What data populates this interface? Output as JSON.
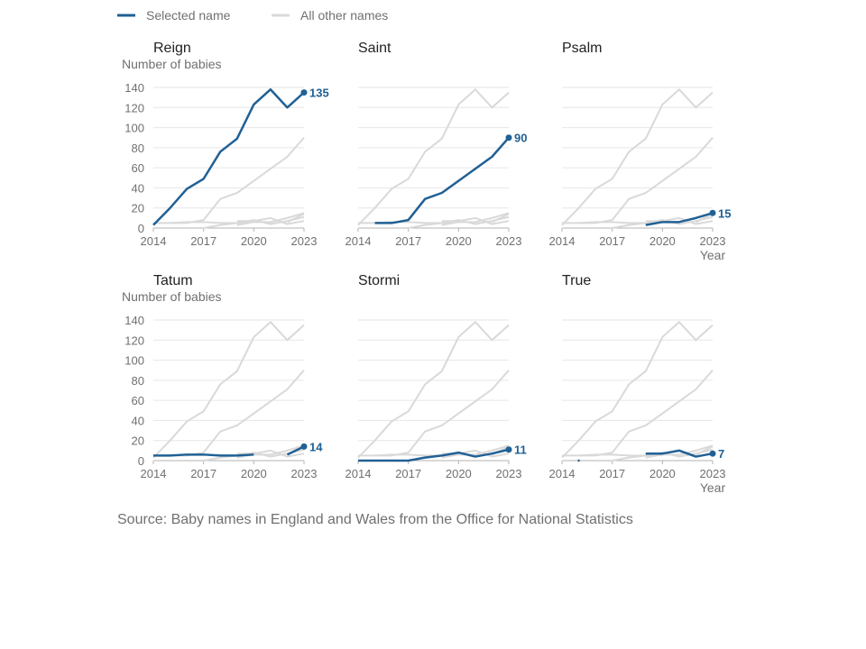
{
  "legend": {
    "selected_label": "Selected name",
    "others_label": "All other names",
    "selected_color": "#206095",
    "others_color": "#d9d9d9"
  },
  "y_axis_title": "Number of babies",
  "x_axis_title": "Year",
  "source": "Source: Baby names in England and Wales from the Office for National Statistics",
  "chart_data": {
    "type": "line",
    "x": [
      2014,
      2015,
      2016,
      2017,
      2018,
      2019,
      2020,
      2021,
      2022,
      2023
    ],
    "x_ticks": [
      2014,
      2017,
      2020,
      2023
    ],
    "y_ticks": [
      0,
      20,
      40,
      60,
      80,
      100,
      120,
      140
    ],
    "xlim": [
      2014,
      2023
    ],
    "ylim": [
      0,
      145
    ],
    "grid": true,
    "panels": [
      "Reign",
      "Saint",
      "Psalm",
      "Tatum",
      "Stormi",
      "True"
    ],
    "series": [
      {
        "name": "Reign",
        "values": [
          3,
          20,
          39,
          49,
          76,
          89,
          123,
          138,
          120,
          135
        ]
      },
      {
        "name": "Saint",
        "values": [
          null,
          5,
          5,
          8,
          29,
          35,
          47,
          59,
          71,
          90
        ]
      },
      {
        "name": "Psalm",
        "values": [
          null,
          null,
          null,
          null,
          null,
          3,
          6,
          6,
          10,
          15
        ]
      },
      {
        "name": "Tatum",
        "values": [
          5,
          5,
          6,
          6,
          5,
          5,
          6,
          null,
          6,
          14
        ]
      },
      {
        "name": "Stormi",
        "values": [
          0,
          0,
          0,
          0,
          3,
          5,
          8,
          4,
          7,
          11
        ]
      },
      {
        "name": "True",
        "values": [
          null,
          0,
          null,
          null,
          null,
          7,
          7,
          10,
          4,
          7
        ]
      }
    ]
  }
}
